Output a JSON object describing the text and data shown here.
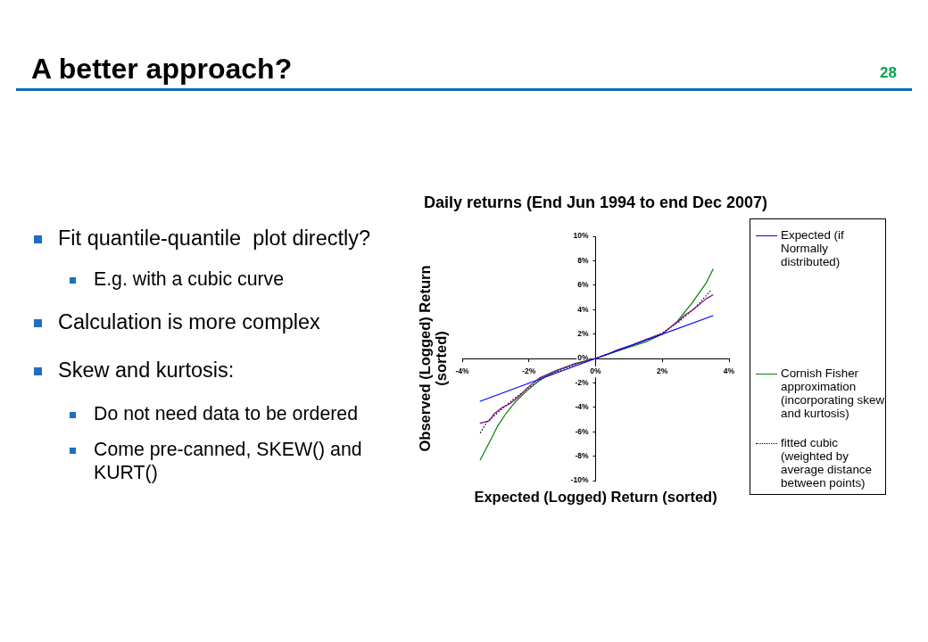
{
  "chart_data": {
    "type": "line",
    "title": "Daily returns (End Jun 1994 to end Dec 2007)",
    "xlabel": "Expected (Logged) Return (sorted)",
    "ylabel": "Observed (Logged) Return (sorted)",
    "annotations": [
      "A better approach?",
      "28",
      "Fit quantile-quantile  plot directly?",
      "E.g. with a cubic curve",
      "Calculation is more complex",
      "Skew and kurtosis:",
      "Do not need data to be ordered",
      "Come pre-canned, SKEW() and KURT()"
    ],
    "xlim": [
      -4,
      4
    ],
    "ylim": [
      -10,
      10
    ],
    "xticks": [
      {
        "value": -4,
        "label": "-4%"
      },
      {
        "value": -2,
        "label": "-2%"
      },
      {
        "value": 0,
        "label": "0%"
      },
      {
        "value": 2,
        "label": "2%"
      },
      {
        "value": 4,
        "label": "4%"
      }
    ],
    "yticks": [
      {
        "value": -10,
        "label": "-10%"
      },
      {
        "value": -8,
        "label": "-8%"
      },
      {
        "value": -6,
        "label": "-6%"
      },
      {
        "value": -4,
        "label": "-4%"
      },
      {
        "value": -2,
        "label": "-2%"
      },
      {
        "value": 0,
        "label": "0%"
      },
      {
        "value": 2,
        "label": "2%"
      },
      {
        "value": 4,
        "label": "4%"
      },
      {
        "value": 6,
        "label": "6%"
      },
      {
        "value": 8,
        "label": "8%"
      },
      {
        "value": 10,
        "label": "10%"
      }
    ],
    "grid": false,
    "legend": "right",
    "marker": "none",
    "series": [
      {
        "name": "Expected (if Normally distributed)",
        "color": "#0000ff",
        "x": [
          -3.46,
          0,
          3.52
        ],
        "values": [
          -3.5,
          0,
          3.5
        ]
      },
      {
        "color": "#800080",
        "x": [
          -3.46,
          -3.19,
          -3.03,
          -2.79,
          -2.57,
          -2.3,
          -2.04,
          -1.68,
          -1.2,
          -0.8,
          -0.4,
          0,
          0.4,
          0.66,
          1.1,
          1.55,
          2.0,
          2.26,
          2.5,
          2.7,
          2.88,
          3.15,
          3.32,
          3.52
        ],
        "values": [
          -5.3,
          -5.1,
          -4.5,
          -4.0,
          -3.7,
          -3.1,
          -2.4,
          -1.6,
          -1.0,
          -0.6,
          -0.3,
          0,
          0.4,
          0.7,
          1.1,
          1.6,
          2.0,
          2.6,
          3.1,
          3.6,
          3.9,
          4.5,
          4.9,
          5.2
        ]
      },
      {
        "name": "Cornish Fisher approximation (incorporating skew and kurtosis)",
        "color": "#008000",
        "x": [
          -3.46,
          -3.19,
          -2.93,
          -2.66,
          -2.39,
          -2.04,
          -1.6,
          -1.15,
          -0.62,
          0,
          0.66,
          1.11,
          1.55,
          2.0,
          2.44,
          2.88,
          3.32,
          3.52
        ],
        "values": [
          -8.3,
          -6.9,
          -5.5,
          -4.4,
          -3.5,
          -2.6,
          -1.6,
          -1.0,
          -0.4,
          0,
          0.6,
          1.0,
          1.4,
          2.0,
          3.0,
          4.5,
          6.2,
          7.3
        ]
      },
      {
        "name": "fitted cubic (weighted by average distance between points)",
        "color": "#000000",
        "line_style": "dotted",
        "x": [
          -3.46,
          -3.26,
          -3.0,
          -2.5,
          -2.0,
          -1.5,
          -1.0,
          -0.5,
          0,
          0.5,
          1.0,
          1.5,
          2.0,
          2.5,
          3.0,
          3.3,
          3.46
        ],
        "values": [
          -6.1,
          -5.2,
          -4.6,
          -3.4,
          -2.4,
          -1.5,
          -0.9,
          -0.4,
          0,
          0.5,
          1.0,
          1.5,
          2.1,
          3.0,
          4.2,
          5.1,
          5.6
        ]
      }
    ]
  }
}
